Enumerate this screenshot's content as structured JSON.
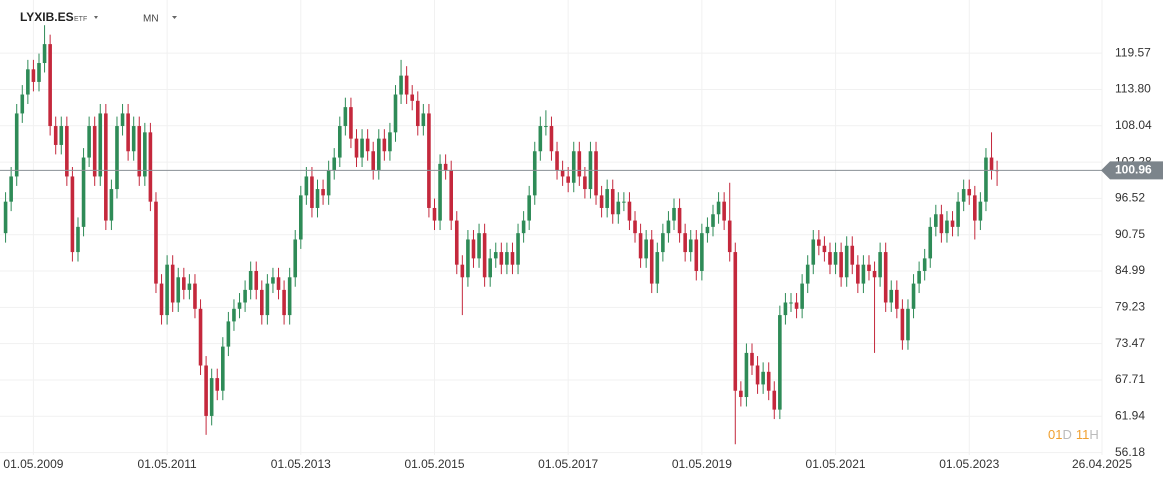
{
  "header": {
    "symbol": "LYXIB.ES",
    "kind": "ETF",
    "interval": "MN"
  },
  "countdown": {
    "days": "01",
    "d": "D",
    "hours": "11",
    "h": "H"
  },
  "chart_data": {
    "type": "candlestick",
    "up_color": "#2e8b57",
    "down_color": "#c4283c",
    "grid": true,
    "x": [
      "01.12.2008",
      "01.01.2009",
      "01.02.2009",
      "01.03.2009",
      "01.04.2009",
      "01.05.2009",
      "01.06.2009",
      "01.07.2009",
      "01.08.2009",
      "01.09.2009",
      "01.10.2009",
      "01.11.2009",
      "01.12.2009",
      "01.01.2010",
      "01.02.2010",
      "01.03.2010",
      "01.04.2010",
      "01.05.2010",
      "01.06.2010",
      "01.07.2010",
      "01.08.2010",
      "01.09.2010",
      "01.10.2010",
      "01.11.2010",
      "01.12.2010",
      "01.01.2011",
      "01.02.2011",
      "01.03.2011",
      "01.04.2011",
      "01.05.2011",
      "01.06.2011",
      "01.07.2011",
      "01.08.2011",
      "01.09.2011",
      "01.10.2011",
      "01.11.2011",
      "01.12.2011",
      "01.01.2012",
      "01.02.2012",
      "01.03.2012",
      "01.04.2012",
      "01.05.2012",
      "01.06.2012",
      "01.07.2012",
      "01.08.2012",
      "01.09.2012",
      "01.10.2012",
      "01.11.2012",
      "01.12.2012",
      "01.01.2013",
      "01.02.2013",
      "01.03.2013",
      "01.04.2013",
      "01.05.2013",
      "01.06.2013",
      "01.07.2013",
      "01.08.2013",
      "01.09.2013",
      "01.10.2013",
      "01.11.2013",
      "01.12.2013",
      "01.01.2014",
      "01.02.2014",
      "01.03.2014",
      "01.04.2014",
      "01.05.2014",
      "01.06.2014",
      "01.07.2014",
      "01.08.2014",
      "01.09.2014",
      "01.10.2014",
      "01.11.2014",
      "01.12.2014",
      "01.01.2015",
      "01.02.2015",
      "01.03.2015",
      "01.04.2015",
      "01.05.2015",
      "01.06.2015",
      "01.07.2015",
      "01.08.2015",
      "01.09.2015",
      "01.10.2015",
      "01.11.2015",
      "01.12.2015",
      "01.01.2016",
      "01.02.2016",
      "01.03.2016",
      "01.04.2016",
      "01.05.2016",
      "01.06.2016",
      "01.07.2016",
      "01.08.2016",
      "01.09.2016",
      "01.10.2016",
      "01.11.2016",
      "01.12.2016",
      "01.01.2017",
      "01.02.2017",
      "01.03.2017",
      "01.04.2017",
      "01.05.2017",
      "01.06.2017",
      "01.07.2017",
      "01.08.2017",
      "01.09.2017",
      "01.10.2017",
      "01.11.2017",
      "01.12.2017",
      "01.01.2018",
      "01.02.2018",
      "01.03.2018",
      "01.04.2018",
      "01.05.2018",
      "01.06.2018",
      "01.07.2018",
      "01.08.2018",
      "01.09.2018",
      "01.10.2018",
      "01.11.2018",
      "01.12.2018",
      "01.01.2019",
      "01.02.2019",
      "01.03.2019",
      "01.04.2019",
      "01.05.2019",
      "01.06.2019",
      "01.07.2019",
      "01.08.2019",
      "01.09.2019",
      "01.10.2019",
      "01.11.2019",
      "01.12.2019",
      "01.01.2020",
      "01.02.2020",
      "01.03.2020",
      "01.04.2020",
      "01.05.2020",
      "01.06.2020",
      "01.07.2020",
      "01.08.2020",
      "01.09.2020",
      "01.10.2020",
      "01.11.2020",
      "01.12.2020",
      "01.01.2021",
      "01.02.2021",
      "01.03.2021",
      "01.04.2021",
      "01.05.2021",
      "01.06.2021",
      "01.07.2021",
      "01.08.2021",
      "01.09.2021",
      "01.10.2021",
      "01.11.2021",
      "01.12.2021",
      "01.01.2022",
      "01.02.2022",
      "01.03.2022",
      "01.04.2022",
      "01.05.2022",
      "01.06.2022",
      "01.07.2022",
      "01.08.2022",
      "01.09.2022",
      "01.10.2022",
      "01.11.2022",
      "01.12.2022",
      "01.01.2023",
      "01.02.2023",
      "01.03.2023",
      "01.04.2023",
      "01.05.2023",
      "01.06.2023",
      "01.07.2023",
      "01.08.2023",
      "01.09.2023",
      "01.10.2023"
    ],
    "open": [
      91,
      96,
      100,
      110,
      113,
      117,
      115,
      118,
      121,
      108,
      105,
      108,
      100,
      88,
      92,
      103,
      108,
      100,
      110,
      93,
      98,
      108,
      110,
      104,
      108,
      100,
      107,
      96,
      83,
      78,
      86,
      80,
      84,
      82,
      83,
      79,
      70,
      62,
      68,
      66,
      73,
      77,
      79,
      80,
      82,
      85,
      82,
      78,
      83,
      84,
      82,
      78,
      84,
      90,
      97,
      100,
      95,
      98,
      97,
      101,
      103,
      108,
      111,
      106,
      103,
      106,
      104,
      101,
      106,
      104,
      107,
      113,
      116,
      113,
      112,
      108,
      110,
      95,
      93,
      102,
      101,
      93,
      86,
      84,
      90,
      87,
      91,
      84,
      87,
      88,
      86,
      88,
      86,
      91,
      93,
      97,
      104,
      108,
      108,
      104,
      101,
      100,
      99,
      104,
      100,
      98,
      104,
      97,
      95,
      98,
      94,
      96,
      96,
      93,
      91,
      87,
      90,
      83,
      88,
      91,
      93,
      95,
      91,
      88,
      90,
      85,
      91,
      92,
      94,
      96,
      93,
      88,
      66,
      65,
      72,
      70,
      67,
      69,
      66,
      63,
      78,
      80,
      80,
      79,
      83,
      86,
      90,
      89,
      88,
      86,
      88,
      84,
      89,
      86,
      83,
      86,
      85,
      84,
      88,
      80,
      82,
      79,
      74,
      79,
      83,
      85,
      87,
      92,
      94,
      91,
      93,
      92,
      96,
      98,
      97,
      93,
      96,
      103,
      101
    ],
    "high": [
      97.5,
      101.5,
      111.5,
      114.5,
      118.5,
      118.5,
      119.5,
      124,
      122.5,
      109.5,
      109.5,
      109.5,
      101.5,
      93.5,
      104.5,
      109.5,
      109.5,
      111.5,
      111.5,
      99.5,
      109.5,
      111.5,
      111.5,
      109.5,
      109.5,
      108.5,
      108.5,
      97.5,
      84.5,
      87.5,
      87.5,
      85.5,
      85.5,
      84.5,
      84.5,
      80.5,
      71.5,
      69.5,
      69.5,
      74.5,
      78.5,
      80.5,
      81.5,
      83.5,
      86.5,
      86.5,
      83.5,
      84.5,
      85.5,
      85.5,
      83.5,
      85.5,
      91.5,
      98.5,
      101.5,
      101.5,
      99.5,
      99.5,
      102.5,
      104.5,
      109.5,
      112.5,
      112.5,
      107.5,
      107.5,
      107.5,
      105.5,
      107.5,
      107.5,
      108.5,
      114.5,
      118.5,
      117.5,
      114.5,
      113.5,
      111.5,
      111.5,
      96.5,
      103.5,
      103.5,
      102.5,
      94.5,
      87.5,
      91.5,
      91.5,
      92.5,
      92.5,
      88.5,
      89.5,
      89.5,
      89.5,
      89.5,
      92.5,
      94.5,
      98.5,
      105.5,
      109.5,
      110.5,
      109.5,
      105.5,
      102.5,
      101.5,
      105.5,
      105.5,
      101.5,
      105.5,
      105.5,
      98.5,
      99.5,
      99.5,
      97.5,
      97.5,
      97.5,
      94.5,
      92.5,
      91.5,
      91.5,
      89.5,
      92.5,
      94.5,
      96.5,
      96.5,
      92.5,
      91.5,
      91.5,
      92.5,
      93.5,
      95.5,
      97.5,
      97.5,
      99,
      89.5,
      67.5,
      73.5,
      73.5,
      71.5,
      70.5,
      70.5,
      67.5,
      79.5,
      81.5,
      81.5,
      81.5,
      84.5,
      87.5,
      91.5,
      91.5,
      90.5,
      89.5,
      89.5,
      89.5,
      90.5,
      90.5,
      87.5,
      87.5,
      87.5,
      86.5,
      89.5,
      89.5,
      83.5,
      83.5,
      80.5,
      80.5,
      84.5,
      86.5,
      88.5,
      93.5,
      95.5,
      95.5,
      94.5,
      94.5,
      97.5,
      99.5,
      99.5,
      98.5,
      97.5,
      104.5,
      107,
      102.5
    ],
    "low": [
      89.5,
      94.5,
      98.5,
      108.5,
      111.5,
      113.5,
      113.5,
      116.5,
      106.5,
      103.5,
      103.5,
      98.5,
      86.5,
      86.5,
      90.5,
      101.5,
      98.5,
      98.5,
      91.5,
      91.5,
      96.5,
      106.5,
      102.5,
      102.5,
      98.5,
      98.5,
      94.5,
      81.5,
      76.5,
      76.5,
      78.5,
      78.5,
      80.5,
      80.5,
      77.5,
      68.5,
      59,
      60.5,
      64.5,
      64.5,
      71.5,
      75.5,
      77.5,
      78.5,
      80.5,
      80.5,
      76.5,
      76.5,
      81.5,
      80.5,
      76.5,
      76.5,
      82.5,
      88.5,
      95.5,
      93.5,
      93.5,
      95.5,
      95.5,
      99.5,
      101.5,
      106.5,
      104.5,
      101.5,
      101.5,
      102.5,
      99.5,
      99.5,
      102.5,
      102.5,
      105.5,
      111.5,
      111.5,
      110.5,
      106.5,
      106.5,
      93.5,
      91.5,
      91.5,
      99.5,
      91.5,
      84.5,
      78,
      82.5,
      85.5,
      85.5,
      82.5,
      82.5,
      85.5,
      84.5,
      84.5,
      84.5,
      84.5,
      89.5,
      91.5,
      95.5,
      102.5,
      106.5,
      102.5,
      99.5,
      98.5,
      97.5,
      97.5,
      98.5,
      96.5,
      96.5,
      95.5,
      93.5,
      93.5,
      92.5,
      92.5,
      94.5,
      91.5,
      89.5,
      85.5,
      85.5,
      81.5,
      81.5,
      86.5,
      89.5,
      91.5,
      89.5,
      86.5,
      86.5,
      83.5,
      83.5,
      89.5,
      90.5,
      92.5,
      91.5,
      86.5,
      57.5,
      63.5,
      63.5,
      68.5,
      65.5,
      65.5,
      64.5,
      61.5,
      61.5,
      76.5,
      78.5,
      77.5,
      77.5,
      81.5,
      84.5,
      87.5,
      86.5,
      84.5,
      84.5,
      82.5,
      82.5,
      84.5,
      81.5,
      81.5,
      83.5,
      72,
      82.5,
      78.5,
      78.5,
      77.5,
      72.5,
      72.5,
      77.5,
      81.5,
      83.5,
      85.5,
      90.5,
      89.5,
      89.5,
      90.5,
      90.5,
      94.5,
      95.5,
      90,
      91.5,
      94.5,
      99.5,
      98.5
    ],
    "close": [
      96,
      100,
      110,
      113,
      117,
      115,
      118,
      121,
      108,
      105,
      108,
      100,
      88,
      92,
      103,
      108,
      100,
      110,
      93,
      98,
      108,
      110,
      104,
      108,
      100,
      107,
      96,
      83,
      78,
      86,
      80,
      84,
      82,
      83,
      79,
      70,
      62,
      68,
      66,
      73,
      77,
      79,
      80,
      82,
      85,
      82,
      78,
      83,
      84,
      82,
      78,
      84,
      90,
      97,
      100,
      95,
      98,
      97,
      101,
      103,
      108,
      111,
      106,
      103,
      106,
      104,
      101,
      106,
      104,
      107,
      113,
      116,
      113,
      112,
      108,
      110,
      95,
      93,
      102,
      101,
      93,
      86,
      84,
      90,
      87,
      91,
      84,
      87,
      88,
      86,
      88,
      86,
      91,
      93,
      97,
      104,
      108,
      108,
      104,
      101,
      100,
      99,
      104,
      100,
      98,
      104,
      97,
      95,
      98,
      94,
      96,
      96,
      93,
      91,
      87,
      90,
      83,
      88,
      91,
      93,
      95,
      91,
      88,
      90,
      85,
      91,
      92,
      94,
      96,
      93,
      88,
      66,
      65,
      72,
      70,
      67,
      69,
      66,
      63,
      78,
      80,
      80,
      79,
      83,
      86,
      90,
      89,
      88,
      86,
      88,
      84,
      89,
      86,
      83,
      86,
      85,
      84,
      88,
      80,
      82,
      79,
      74,
      79,
      83,
      85,
      87,
      92,
      94,
      91,
      93,
      92,
      96,
      98,
      97,
      93,
      96,
      103,
      101,
      100.96
    ],
    "xlim": [
      "01.11.2008",
      "26.04.2025"
    ],
    "xticks": [
      "01.05.2009",
      "01.05.2011",
      "01.05.2013",
      "01.05.2015",
      "01.05.2017",
      "01.05.2019",
      "01.05.2021",
      "01.05.2023",
      "26.04.2025"
    ],
    "ylim": [
      55.8,
      128.0
    ],
    "yticks": [
      119.57,
      {
        "value": 113.8,
        "label": "113.80"
      },
      108.04,
      102.28,
      96.52,
      90.75,
      84.99,
      79.23,
      73.47,
      67.71,
      61.94,
      56.18
    ]
  }
}
